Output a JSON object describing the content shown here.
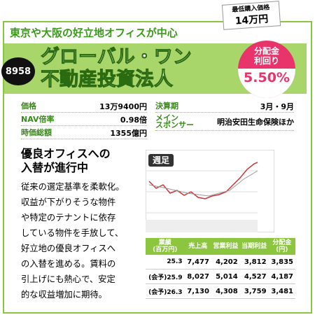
{
  "header": {
    "tagline": "東京や大阪の好立地オフィスが中心",
    "min_price_label": "最低購入価格",
    "min_price": "14万円",
    "code": "8958",
    "title": [
      "グローバル・ワン",
      "不動産投資法人"
    ],
    "yield_label": [
      "分配金",
      "利回り"
    ],
    "yield": "5.50%"
  },
  "info": {
    "left": [
      [
        "価格",
        "13万9400円"
      ],
      [
        "NAV倍率",
        "0.98倍"
      ],
      [
        "時価総額",
        "1355億円"
      ]
    ],
    "right": [
      [
        "決算期",
        "3月・9月"
      ],
      [
        "メイン\nスポンサー",
        "明治安田生命保険ほか"
      ]
    ]
  },
  "article": {
    "heading": [
      "優良オフィスへの",
      "入替が進行中"
    ],
    "body": [
      "従来の選定基準を柔軟化。",
      "収益が下がりそうな物件",
      "や特定のテナントに依存",
      "している物件を手放して、",
      "好立地の優良オフィスへ",
      "の入替を進める。賃料の",
      "引上げにも熱心で、安定",
      "的な収益増加に期待。"
    ]
  },
  "chart": {
    "label": "週足"
  },
  "table": {
    "header": [
      "業績\n(百万円)",
      "売上高",
      "営業利益",
      "当期利益",
      "分配金\n(円)"
    ],
    "rows": [
      [
        "25.3",
        "7,477",
        "4,202",
        "3,812",
        "3,835"
      ],
      [
        "(会予)25.9",
        "8,027",
        "5,014",
        "4,527",
        "4,187"
      ],
      [
        "(会予)26.3",
        "7,130",
        "4,308",
        "3,759",
        "3,481"
      ]
    ]
  }
}
